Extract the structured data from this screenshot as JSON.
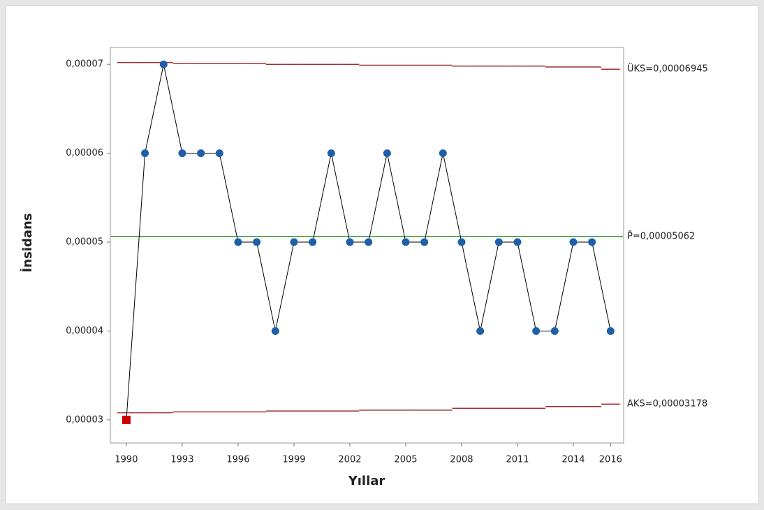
{
  "chart_data": {
    "type": "line",
    "xlabel": "Yıllar",
    "ylabel": "İnsidans",
    "x": [
      1990,
      1991,
      1992,
      1993,
      1994,
      1995,
      1996,
      1997,
      1998,
      1999,
      2000,
      2001,
      2002,
      2003,
      2004,
      2005,
      2006,
      2007,
      2008,
      2009,
      2010,
      2011,
      2012,
      2013,
      2014,
      2015,
      2016
    ],
    "series": [
      {
        "color": "#1f5fa8",
        "values": [
          3e-05,
          6e-05,
          7e-05,
          6e-05,
          6e-05,
          6e-05,
          5e-05,
          5e-05,
          4e-05,
          5e-05,
          5e-05,
          6e-05,
          5e-05,
          5e-05,
          6e-05,
          5e-05,
          5e-05,
          6e-05,
          5e-05,
          4e-05,
          5e-05,
          5e-05,
          4e-05,
          4e-05,
          5e-05,
          5e-05,
          4e-05
        ]
      }
    ],
    "line_color": "#000000",
    "out_of_control_color": "#cc0000",
    "ucl": {
      "label": "ÜKS=0,00006945",
      "color": "#a03030",
      "values": [
        7.02e-05,
        7.02e-05,
        7.02e-05,
        7.01e-05,
        7.01e-05,
        7.01e-05,
        7.01e-05,
        7.01e-05,
        7e-05,
        7e-05,
        7e-05,
        7e-05,
        7e-05,
        6.99e-05,
        6.99e-05,
        6.99e-05,
        6.99e-05,
        6.99e-05,
        6.98e-05,
        6.98e-05,
        6.98e-05,
        6.98e-05,
        6.98e-05,
        6.97e-05,
        6.97e-05,
        6.97e-05,
        6.945e-05
      ]
    },
    "center": {
      "label": "P̄=0,00005062",
      "value": 5.062e-05,
      "color": "#2a8a2a"
    },
    "lcl": {
      "label": "AKS=0,00003178",
      "color": "#a03030",
      "values": [
        3.08e-05,
        3.08e-05,
        3.08e-05,
        3.09e-05,
        3.09e-05,
        3.09e-05,
        3.09e-05,
        3.09e-05,
        3.1e-05,
        3.1e-05,
        3.1e-05,
        3.1e-05,
        3.1e-05,
        3.11e-05,
        3.11e-05,
        3.11e-05,
        3.11e-05,
        3.11e-05,
        3.13e-05,
        3.13e-05,
        3.13e-05,
        3.13e-05,
        3.13e-05,
        3.15e-05,
        3.15e-05,
        3.15e-05,
        3.178e-05
      ]
    },
    "xlim": [
      1989.14,
      2016.7
    ],
    "ylim": [
      2.74e-05,
      7.19e-05
    ],
    "xticks": [
      1990,
      1993,
      1996,
      1999,
      2002,
      2005,
      2008,
      2011,
      2014,
      2016
    ],
    "yticks": [
      {
        "value": 3e-05,
        "label": "0,00003"
      },
      {
        "value": 4e-05,
        "label": "0,00004"
      },
      {
        "value": 5e-05,
        "label": "0,00005"
      },
      {
        "value": 6e-05,
        "label": "0,00006"
      },
      {
        "value": 7e-05,
        "label": "0,00007"
      }
    ]
  }
}
